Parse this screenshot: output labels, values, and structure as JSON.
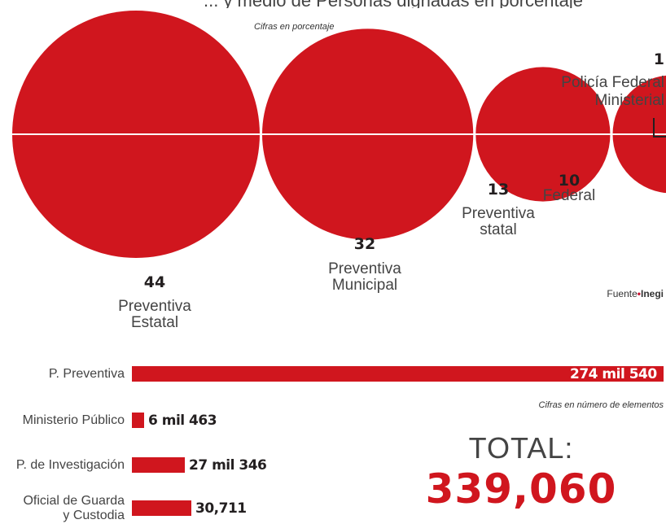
{
  "header": {
    "title_fragment": "... y medio de Personas dignadas en porcentaje",
    "note_top": "Cifras en porcentaje",
    "note_bars": "Cifras en número de elementos"
  },
  "chart_data": [
    {
      "type": "bubble",
      "title": "",
      "unit_note": "Cifras en porcentaje",
      "categories": [
        "Preventiva Estatal",
        "Preventiva Municipal",
        "Preventiva statal",
        "Federal",
        "Policía Federal Ministerial"
      ],
      "values": [
        44,
        32,
        13,
        10,
        1
      ],
      "labels": [
        {
          "value": "44",
          "line1": "Preventiva",
          "line2": "Estatal"
        },
        {
          "value": "32",
          "line1": "Preventiva",
          "line2": "Municipal"
        },
        {
          "value": "13",
          "line1": "Preventiva",
          "line2": "statal"
        },
        {
          "value": "10",
          "line1": "Federal",
          "line2": ""
        },
        {
          "value": "1",
          "line1": "Policía Federal",
          "line2": "Ministerial"
        }
      ],
      "color": "#d0161e"
    },
    {
      "type": "bar",
      "orientation": "horizontal",
      "unit_note": "Cifras en número de elementos",
      "categories": [
        "P. Preventiva",
        "Ministerio Público",
        "P. de Investigación",
        "Oficial de Guarda y Custodia"
      ],
      "values": [
        274540,
        6463,
        27346,
        30711
      ],
      "value_labels": [
        "274 mil 540",
        "6 mil 463",
        "27 mil 346",
        "30,711"
      ],
      "category_lines": [
        [
          "P. Preventiva"
        ],
        [
          "Ministerio Público"
        ],
        [
          "P. de Investigación"
        ],
        [
          "Oficial de Guarda",
          "y Custodia"
        ]
      ],
      "color": "#d0161e"
    }
  ],
  "source": {
    "prefix": "Fuente",
    "name": "Inegi"
  },
  "total": {
    "label": "TOTAL:",
    "value": "339,060"
  }
}
